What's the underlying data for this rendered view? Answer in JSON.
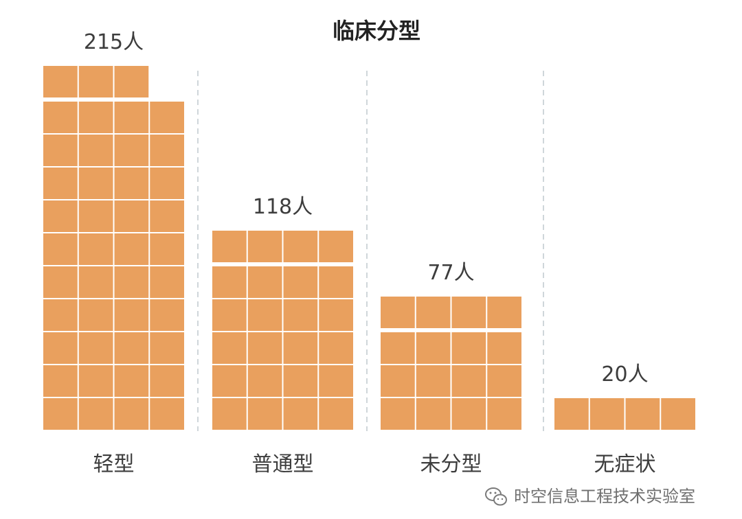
{
  "chart_data": {
    "type": "bar",
    "title": "临床分型",
    "categories": [
      "轻型",
      "普通型",
      "未分型",
      "无症状"
    ],
    "values": [
      215,
      118,
      77,
      20
    ],
    "value_labels": [
      "215人",
      "118人",
      "77人",
      "20人"
    ],
    "unit": "人",
    "xlabel": "",
    "ylabel": "",
    "grid": false,
    "legend": "none",
    "bar_color": "#e9a05e",
    "separator_color": "#cfd6da",
    "blocks_per_row": 4,
    "people_per_block": 5
  },
  "watermark": {
    "icon": "wechat-icon",
    "text": "时空信息工程技术实验室"
  },
  "colors": {
    "title": "#222222",
    "labels": "#3d3d3d",
    "watermark": "#6f6f6f"
  }
}
